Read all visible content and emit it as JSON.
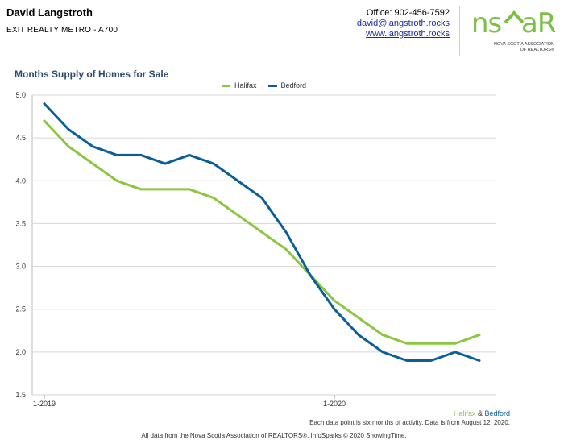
{
  "header": {
    "agent_name": "David Langstroth",
    "office": "EXIT REALTY METRO - A700",
    "phone": "Office: 902-456-7592",
    "email": "david@langstroth.rocks",
    "website": "www.langstroth.rocks"
  },
  "logo": {
    "word": "nsar",
    "line1": "NOVA SCOTIA ASSOCIATION",
    "line2": "OF REALTORS®"
  },
  "colors": {
    "halifax": "#8cc63f",
    "bedford": "#0b5f98",
    "title": "#2e4a6b"
  },
  "chart_data": {
    "type": "line",
    "title": "Months Supply of Homes for Sale",
    "x_tick_labels": [
      "1-2019",
      "1-2020"
    ],
    "ylim": [
      1.5,
      5.0
    ],
    "y_ticks": [
      1.5,
      2.0,
      2.5,
      3.0,
      3.5,
      4.0,
      4.5,
      5.0
    ],
    "y_tick_labels": [
      "1.5",
      "2.0",
      "2.5",
      "3.0",
      "3.5",
      "4.0",
      "4.5",
      "5.0"
    ],
    "grid": true,
    "legend_position": "top-center",
    "series": [
      {
        "name": "Halifax",
        "color": "#8cc63f",
        "values": [
          4.7,
          4.4,
          4.2,
          4.0,
          3.9,
          3.9,
          3.9,
          3.8,
          3.6,
          3.4,
          3.2,
          2.9,
          2.6,
          2.4,
          2.2,
          2.1,
          2.1,
          2.1,
          2.2
        ]
      },
      {
        "name": "Bedford",
        "color": "#0b5f98",
        "values": [
          4.9,
          4.6,
          4.4,
          4.3,
          4.3,
          4.2,
          4.3,
          4.2,
          4.0,
          3.8,
          3.4,
          2.9,
          2.5,
          2.2,
          2.0,
          1.9,
          1.9,
          2.0,
          1.9
        ]
      }
    ]
  },
  "footer": {
    "series_a": "Halifax",
    "amp": " & ",
    "series_b": "Bedford",
    "note": "Each data point is six months of activity. Data is from August 12, 2020.",
    "credit": "All data from the Nova Scotia Association of REALTORS®. InfoSparks © 2020 ShowingTime."
  }
}
